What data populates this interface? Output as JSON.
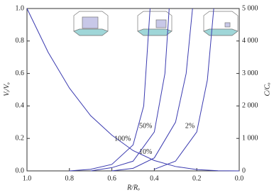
{
  "chart_data": {
    "type": "line",
    "xlabel": "R/Rₒ",
    "ylabel": "Vᵢ/Vₒ",
    "y2label": "C/Cₒ",
    "xlim": [
      1,
      0
    ],
    "ylim": [
      0,
      1
    ],
    "y2lim": [
      0,
      5000
    ],
    "xticks": [
      {
        "value": 1,
        "label": "1.0"
      },
      0.8,
      0.6,
      0.4,
      0.2,
      {
        "value": 0,
        "label": "0.0"
      }
    ],
    "yticks": [
      {
        "value": 0,
        "label": "0.0"
      },
      0.2,
      0.4,
      0.6,
      0.8,
      {
        "value": 1,
        "label": "1.0"
      }
    ],
    "y2ticks": [
      0,
      {
        "value": 1000,
        "label": "1 000"
      },
      {
        "value": 2000,
        "label": "2 000"
      },
      {
        "value": 3000,
        "label": "3 000"
      },
      {
        "value": 4000,
        "label": "4 000"
      },
      {
        "value": 5000,
        "label": "5 000"
      }
    ],
    "series": [
      {
        "color": "#3b3bb0",
        "x": [
          1,
          0.9,
          0.8,
          0.7,
          0.6,
          0.5,
          0.4,
          0.3,
          0.2,
          0.1,
          0
        ],
        "values": [
          1,
          0.73,
          0.51,
          0.34,
          0.22,
          0.125,
          0.064,
          0.027,
          0.008,
          0.001,
          0
        ]
      },
      {
        "name": "100%",
        "color": "#3b3bb0",
        "axis": "y2",
        "x": [
          0.8,
          0.7,
          0.6,
          0.5,
          0.45,
          0.43,
          0.42
        ],
        "values": [
          0,
          50,
          200,
          800,
          2000,
          4000,
          5000
        ]
      },
      {
        "name": "50%",
        "color": "#3b3bb0",
        "axis": "y2",
        "x": [
          0.7,
          0.6,
          0.5,
          0.4,
          0.35,
          0.33
        ],
        "values": [
          0,
          100,
          300,
          1200,
          3000,
          5000
        ]
      },
      {
        "name": "10%",
        "color": "#3b3bb0",
        "axis": "y2",
        "x": [
          0.6,
          0.5,
          0.4,
          0.3,
          0.25,
          0.22
        ],
        "values": [
          0,
          80,
          400,
          1500,
          3000,
          5000
        ]
      },
      {
        "name": "2%",
        "color": "#3b3bb0",
        "axis": "y2",
        "x": [
          0.4,
          0.3,
          0.2,
          0.15,
          0.12
        ],
        "values": [
          50,
          300,
          1200,
          2800,
          5000
        ]
      }
    ]
  }
}
